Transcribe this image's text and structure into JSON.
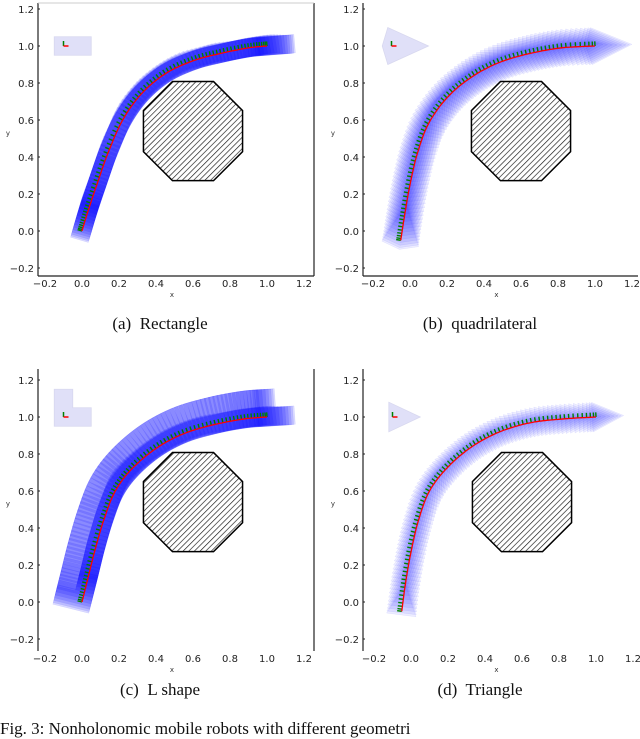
{
  "figure": {
    "subfigures": [
      {
        "id": "a",
        "label": "(a)",
        "caption": "Rectangle",
        "robot_shape": "rectangle"
      },
      {
        "id": "b",
        "label": "(b)",
        "caption": "quadrilateral",
        "robot_shape": "quadrilateral"
      },
      {
        "id": "c",
        "label": "(c)",
        "caption": "L shape",
        "robot_shape": "L"
      },
      {
        "id": "d",
        "label": "(d)",
        "caption": "Triangle",
        "robot_shape": "triangle"
      }
    ],
    "caption_partial": "Fig. 3: Nonholonomic mobile robots with different geometri"
  },
  "axes": {
    "xlabel": "x",
    "ylabel": "y",
    "xticks": [
      "-0.2",
      "0.0",
      "0.2",
      "0.4",
      "0.6",
      "0.8",
      "1.0",
      "1.2"
    ],
    "yticks": [
      "1.2",
      "1.0",
      "0.8",
      "0.6",
      "0.4",
      "0.2",
      "0.0",
      "-0.2"
    ],
    "xlim": [
      -0.2,
      1.2
    ],
    "ylim": [
      -0.2,
      1.2
    ]
  },
  "colors": {
    "swept_body": "#0000ff",
    "reference_path": "#ff0000",
    "robot_frame": "#008000",
    "obstacle_outline": "#000000",
    "legend_shape_fill": "#e0e0f8"
  },
  "chart_data": [
    {
      "type": "line",
      "title": "(a) Rectangle",
      "xlabel": "x",
      "ylabel": "y",
      "xlim": [
        -0.2,
        1.2
      ],
      "ylim": [
        -0.2,
        1.2
      ],
      "series": [
        {
          "name": "trajectory",
          "x": [
            0.0,
            0.03,
            0.08,
            0.14,
            0.22,
            0.32,
            0.45,
            0.6,
            0.75,
            0.9,
            1.0
          ],
          "y": [
            0.0,
            0.1,
            0.25,
            0.42,
            0.6,
            0.74,
            0.85,
            0.92,
            0.96,
            0.99,
            1.0
          ]
        }
      ],
      "obstacle": {
        "shape": "octagon",
        "center": [
          0.6,
          0.54
        ],
        "radius": 0.29
      },
      "start": [
        0.0,
        0.0
      ],
      "goal": [
        1.0,
        1.0
      ]
    },
    {
      "type": "line",
      "title": "(b) quadrilateral",
      "xlabel": "x",
      "ylabel": "y",
      "xlim": [
        -0.2,
        1.2
      ],
      "ylim": [
        -0.2,
        1.2
      ],
      "series": [
        {
          "name": "trajectory",
          "x": [
            -0.05,
            -0.03,
            0.0,
            0.04,
            0.1,
            0.2,
            0.33,
            0.48,
            0.65,
            0.82,
            1.0
          ],
          "y": [
            -0.05,
            0.08,
            0.25,
            0.42,
            0.58,
            0.72,
            0.83,
            0.91,
            0.96,
            0.99,
            1.0
          ]
        }
      ],
      "obstacle": {
        "shape": "octagon",
        "center": [
          0.6,
          0.54
        ],
        "radius": 0.29
      },
      "start": [
        -0.05,
        -0.05
      ],
      "goal": [
        1.0,
        1.0
      ]
    },
    {
      "type": "line",
      "title": "(c) L shape",
      "xlabel": "x",
      "ylabel": "y",
      "xlim": [
        -0.2,
        1.2
      ],
      "ylim": [
        -0.2,
        1.2
      ],
      "series": [
        {
          "name": "trajectory",
          "x": [
            0.0,
            0.03,
            0.07,
            0.12,
            0.18,
            0.27,
            0.4,
            0.55,
            0.72,
            0.88,
            1.0
          ],
          "y": [
            0.0,
            0.12,
            0.28,
            0.45,
            0.6,
            0.72,
            0.83,
            0.91,
            0.96,
            0.99,
            1.0
          ]
        }
      ],
      "obstacle": {
        "shape": "octagon",
        "center": [
          0.6,
          0.54
        ],
        "radius": 0.29
      },
      "start": [
        0.0,
        0.0
      ],
      "goal": [
        1.0,
        1.0
      ]
    },
    {
      "type": "line",
      "title": "(d) Triangle",
      "xlabel": "x",
      "ylabel": "y",
      "xlim": [
        -0.2,
        1.2
      ],
      "ylim": [
        -0.2,
        1.2
      ],
      "series": [
        {
          "name": "trajectory",
          "x": [
            -0.05,
            -0.03,
            0.0,
            0.04,
            0.1,
            0.2,
            0.33,
            0.48,
            0.65,
            0.83,
            1.0
          ],
          "y": [
            -0.05,
            0.1,
            0.27,
            0.44,
            0.6,
            0.73,
            0.84,
            0.92,
            0.97,
            0.99,
            1.0
          ]
        }
      ],
      "obstacle": {
        "shape": "octagon",
        "center": [
          0.6,
          0.54
        ],
        "radius": 0.29
      },
      "start": [
        -0.05,
        -0.05
      ],
      "goal": [
        1.0,
        1.0
      ]
    }
  ]
}
